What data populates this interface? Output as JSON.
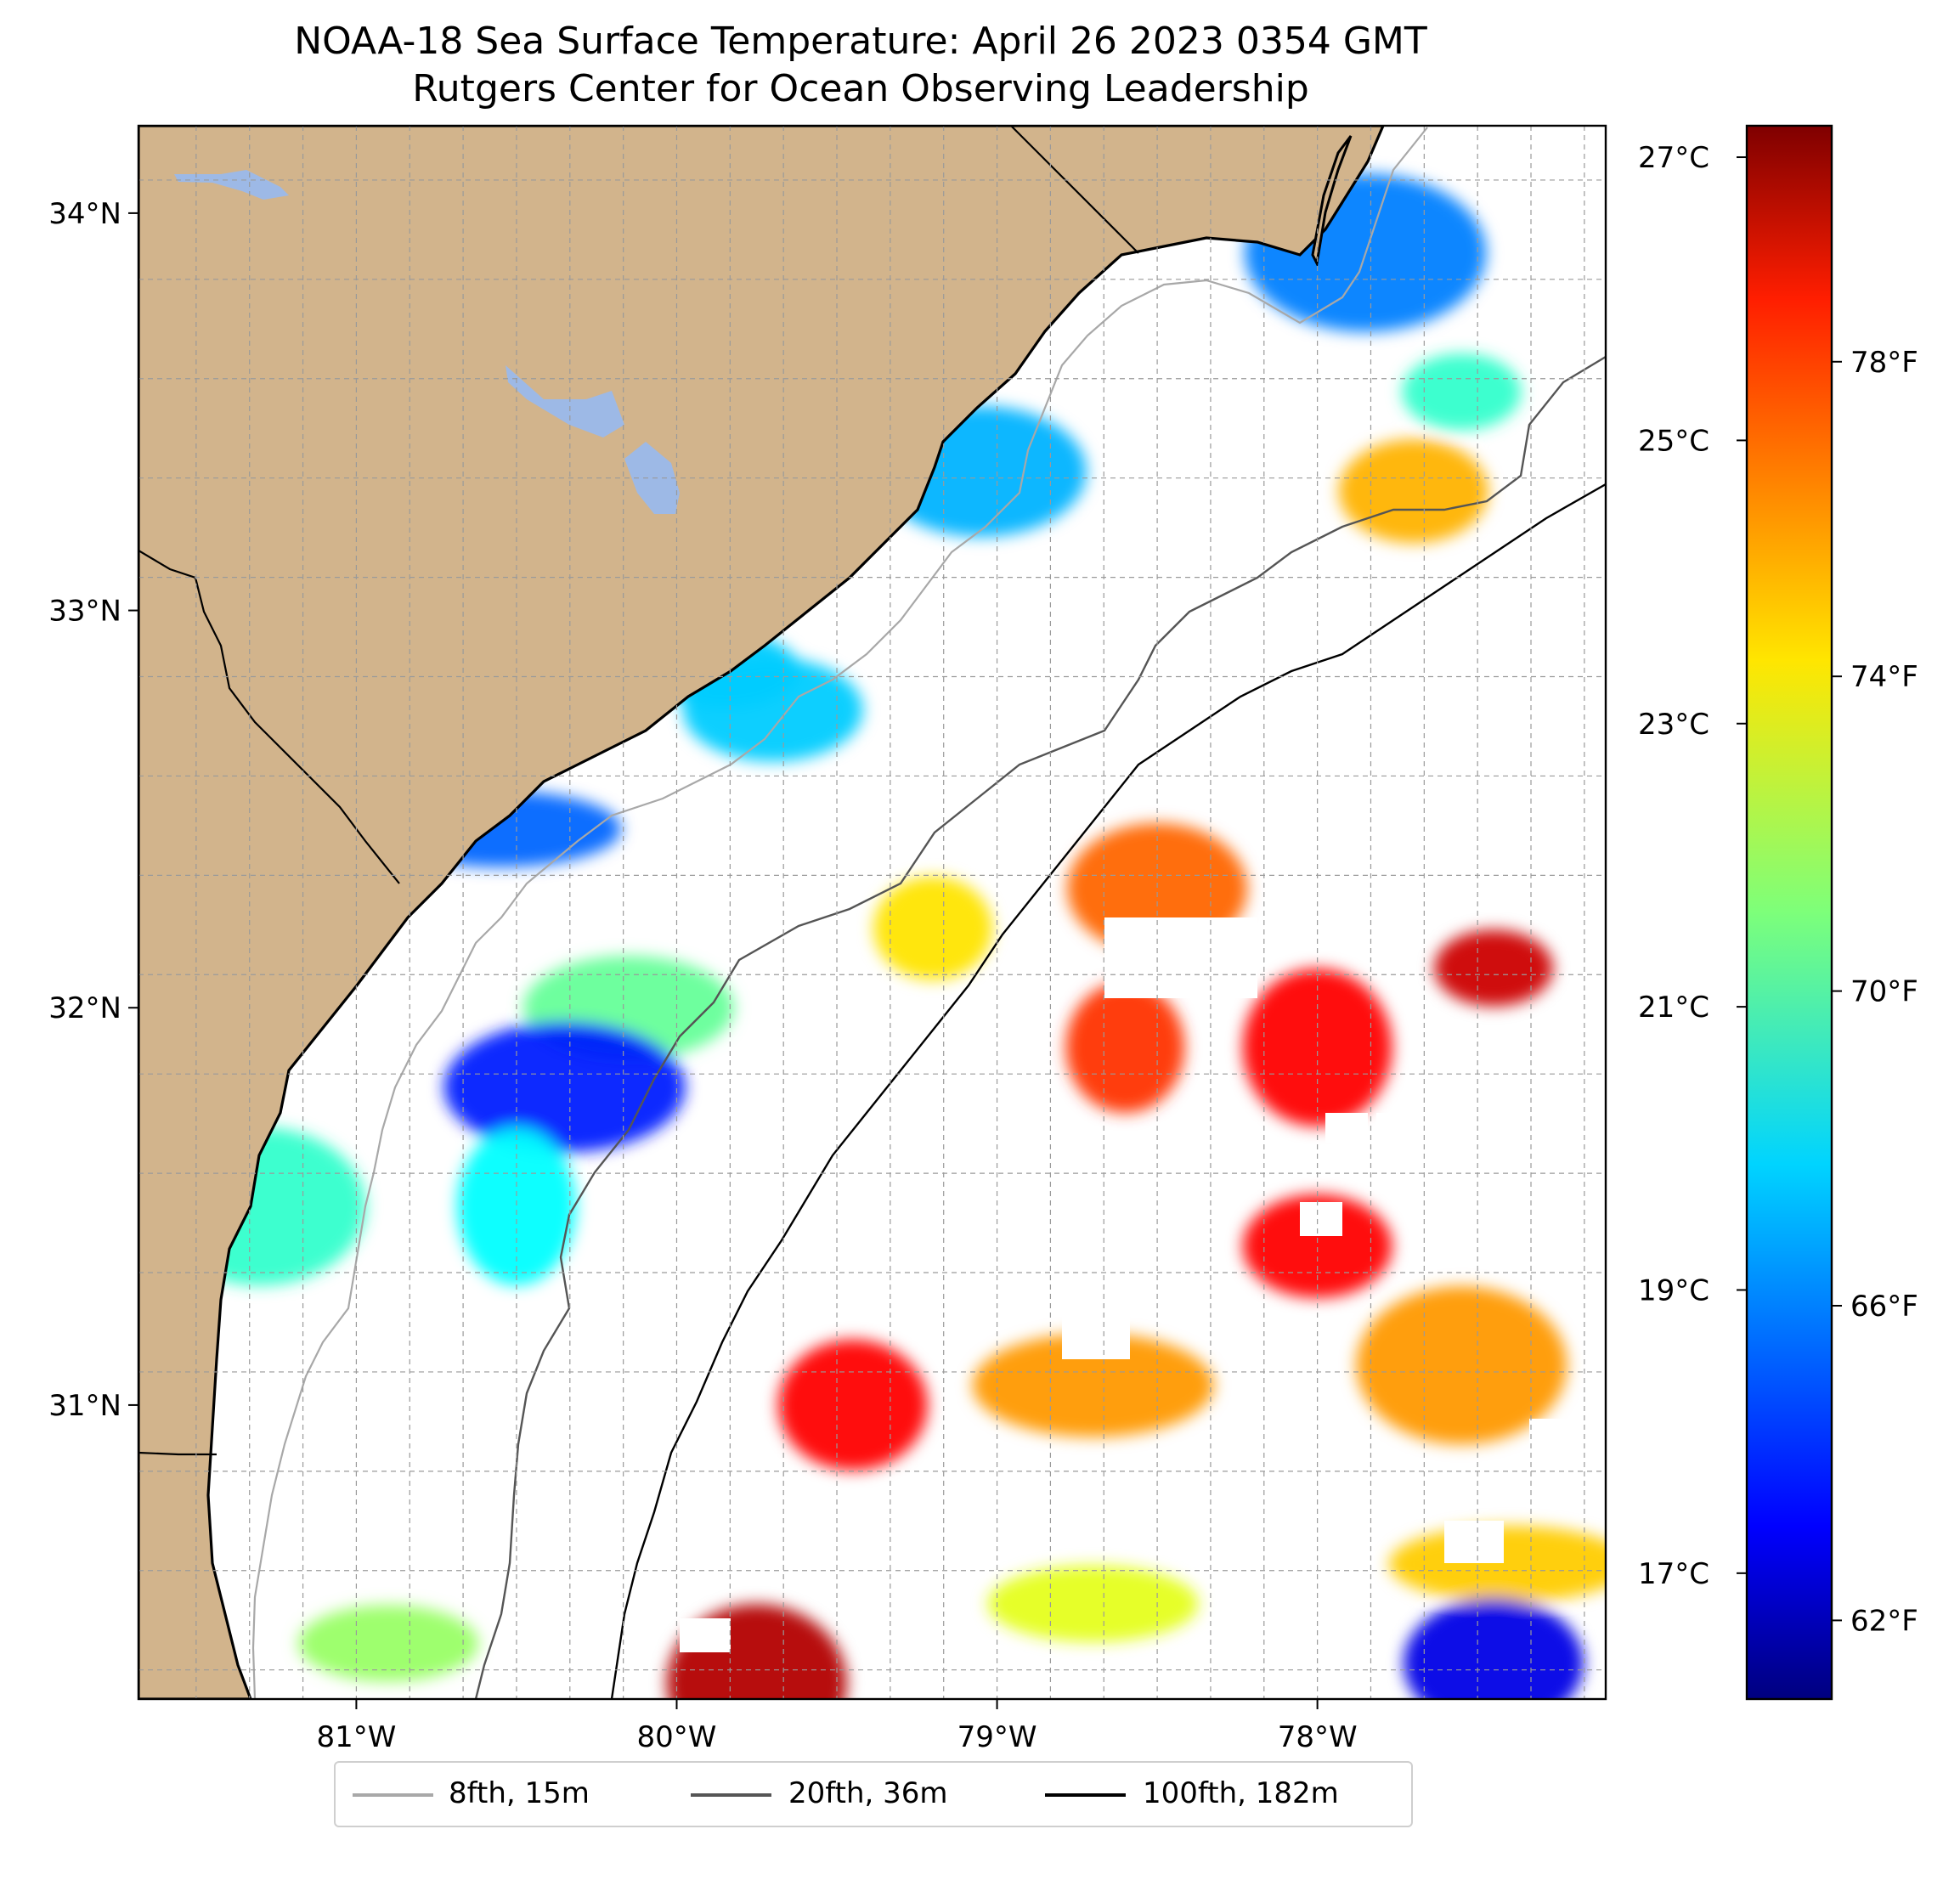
{
  "title": {
    "line1": "NOAA-18 Sea Surface Temperature: April 26 2023 0354 GMT",
    "line2": "Rutgers Center for Ocean Observing Leadership"
  },
  "map": {
    "lon_ticks": [
      {
        "value": -81,
        "label": "81°W"
      },
      {
        "value": -80,
        "label": "80°W"
      },
      {
        "value": -79,
        "label": "79°W"
      },
      {
        "value": -78,
        "label": "78°W"
      }
    ],
    "lat_ticks": [
      {
        "value": 34,
        "label": "34°N"
      },
      {
        "value": 33,
        "label": "33°N"
      },
      {
        "value": 32,
        "label": "32°N"
      },
      {
        "value": 31,
        "label": "31°N"
      }
    ],
    "extent": {
      "lon_min": -81.68,
      "lon_max": -77.1,
      "lat_min": 30.26,
      "lat_max": 34.22
    },
    "land_color": "#d2b48c",
    "lake_color": "#9db9e6",
    "gridlines": true
  },
  "colorbar": {
    "colormap": "jet",
    "celsius_ticks": [
      {
        "value": 27,
        "label": "27°C"
      },
      {
        "value": 25,
        "label": "25°C"
      },
      {
        "value": 23,
        "label": "23°C"
      },
      {
        "value": 21,
        "label": "21°C"
      },
      {
        "value": 19,
        "label": "19°C"
      },
      {
        "value": 17,
        "label": "17°C"
      }
    ],
    "fahrenheit_ticks": [
      {
        "value": 78,
        "label": "78°F"
      },
      {
        "value": 74,
        "label": "74°F"
      },
      {
        "value": 70,
        "label": "70°F"
      },
      {
        "value": 66,
        "label": "66°F"
      },
      {
        "value": 62,
        "label": "62°F"
      }
    ],
    "range_f": [
      61,
      81
    ]
  },
  "legend": {
    "placement": "bottom-center",
    "items": [
      {
        "label": "8fth, 15m",
        "color": "#a8a8a8"
      },
      {
        "label": "20fth, 36m",
        "color": "#555555"
      },
      {
        "label": "100fth, 182m",
        "color": "#000000"
      }
    ]
  },
  "chart_data": {
    "type": "heatmap",
    "title": "NOAA-18 Sea Surface Temperature: April 26 2023 0354 GMT",
    "subtitle": "Rutgers Center for Ocean Observing Leadership",
    "value_range_f": [
      61,
      81
    ],
    "value_range_c": [
      16.1,
      27.2
    ],
    "regions": [
      {
        "lon": -77.45,
        "lat": 32.1,
        "temp_f": 79.5
      },
      {
        "lon": -78.0,
        "lat": 31.4,
        "temp_f": 78.5
      },
      {
        "lon": -78.5,
        "lat": 32.3,
        "temp_f": 76.5
      },
      {
        "lon": -77.55,
        "lat": 31.1,
        "temp_f": 75.5
      },
      {
        "lon": -77.4,
        "lat": 30.6,
        "temp_f": 74.5
      },
      {
        "lon": -79.2,
        "lat": 32.2,
        "temp_f": 74.0
      },
      {
        "lon": -79.45,
        "lat": 31.0,
        "temp_f": 78.5
      },
      {
        "lon": -79.75,
        "lat": 30.3,
        "temp_f": 80.0
      },
      {
        "lon": -78.7,
        "lat": 30.5,
        "temp_f": 73.0
      },
      {
        "lon": -78.7,
        "lat": 31.05,
        "temp_f": 75.5
      },
      {
        "lon": -78.6,
        "lat": 31.9,
        "temp_f": 77.5
      },
      {
        "lon": -78.0,
        "lat": 31.9,
        "temp_f": 78.5
      },
      {
        "lon": -80.9,
        "lat": 30.4,
        "temp_f": 71.5
      },
      {
        "lon": -80.15,
        "lat": 32.0,
        "temp_f": 70.5
      },
      {
        "lon": -80.35,
        "lat": 31.8,
        "temp_f": 64.0
      },
      {
        "lon": -80.5,
        "lat": 31.5,
        "temp_f": 68.5
      },
      {
        "lon": -79.85,
        "lat": 32.85,
        "temp_f": 67.5
      },
      {
        "lon": -79.7,
        "lat": 32.75,
        "temp_f": 67.5
      },
      {
        "lon": -79.05,
        "lat": 33.35,
        "temp_f": 67.0
      },
      {
        "lon": -77.85,
        "lat": 33.9,
        "temp_f": 66.0
      },
      {
        "lon": -77.55,
        "lat": 33.55,
        "temp_f": 69.5
      },
      {
        "lon": -77.7,
        "lat": 33.3,
        "temp_f": 75.0
      },
      {
        "lon": -77.45,
        "lat": 30.35,
        "temp_f": 63.0
      },
      {
        "lon": -81.3,
        "lat": 31.5,
        "temp_f": 69.5
      },
      {
        "lon": -80.55,
        "lat": 32.45,
        "temp_f": 65.5
      }
    ]
  }
}
